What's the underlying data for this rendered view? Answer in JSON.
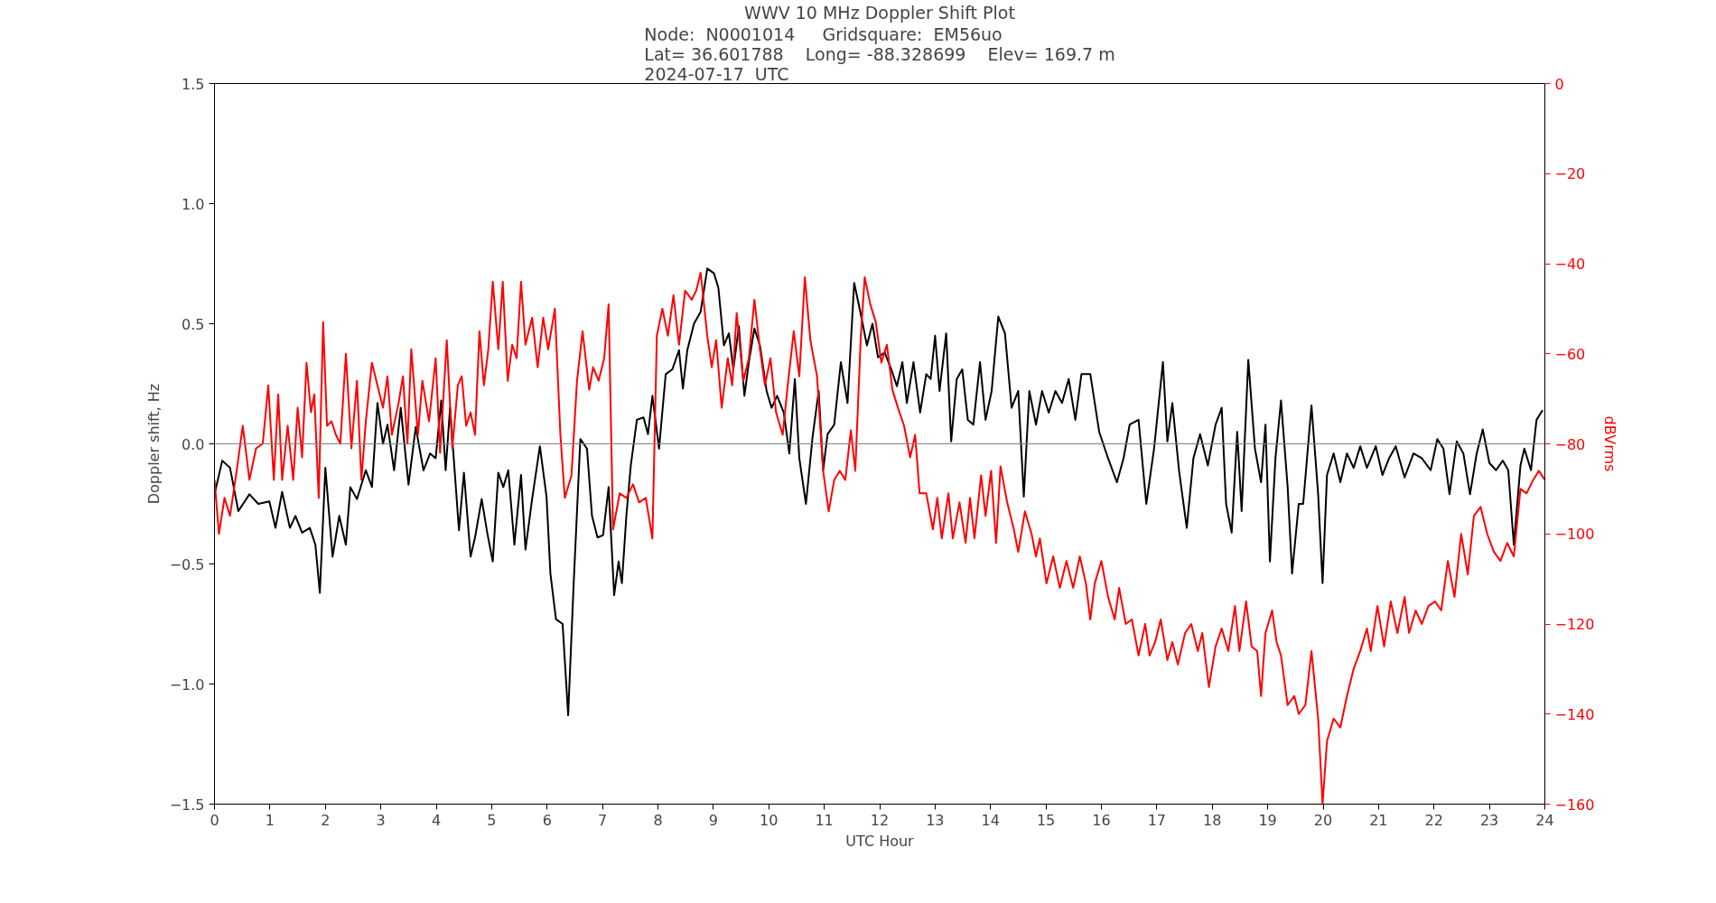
{
  "chart_data": {
    "type": "line",
    "title": "WWV 10 MHz Doppler Shift Plot",
    "subtitle": "Node:  N0001014     Gridsquare:  EM56uo\nLat= 36.601788    Long= -88.328699    Elev= 169.7 m\n2024-07-17  UTC",
    "xlabel": "UTC Hour",
    "ylabel": "Doppler shift, Hz",
    "y2label": "dBVrms",
    "xlim": [
      0,
      24
    ],
    "xticks": [
      0,
      1,
      2,
      3,
      4,
      5,
      6,
      7,
      8,
      9,
      10,
      11,
      12,
      13,
      14,
      15,
      16,
      17,
      18,
      19,
      20,
      21,
      22,
      23,
      24
    ],
    "ylim": [
      -1.5,
      1.5
    ],
    "yticks": [
      {
        "value": -1.5,
        "label": "−1.5"
      },
      {
        "value": -1.0,
        "label": "−1.0"
      },
      {
        "value": -0.5,
        "label": "−0.5"
      },
      {
        "value": 0,
        "label": "0.0"
      },
      {
        "value": 0.5,
        "label": "0.5"
      },
      {
        "value": 1.0,
        "label": "1.0"
      },
      {
        "value": 1.5,
        "label": "1.5"
      }
    ],
    "y2lim": [
      -160,
      0
    ],
    "y2ticks": [
      {
        "value": -160,
        "label": "−160"
      },
      {
        "value": -140,
        "label": "−140"
      },
      {
        "value": -120,
        "label": "−120"
      },
      {
        "value": -100,
        "label": "−100"
      },
      {
        "value": -80,
        "label": "−80"
      },
      {
        "value": -60,
        "label": "−60"
      },
      {
        "value": -40,
        "label": "−40"
      },
      {
        "value": -20,
        "label": "−20"
      },
      {
        "value": 0,
        "label": "0"
      }
    ],
    "grid": false,
    "ref_lines": [
      {
        "axis": "y",
        "value": 0,
        "label": null,
        "color": "#808080"
      }
    ],
    "series": [
      {
        "color": "#000000",
        "x": [
          0,
          0.14,
          0.28,
          0.43,
          0.63,
          0.79,
          0.99,
          1.1,
          1.22,
          1.36,
          1.46,
          1.58,
          1.72,
          1.82,
          1.9,
          2.0,
          2.13,
          2.25,
          2.37,
          2.45,
          2.57,
          2.73,
          2.84,
          2.94,
          3.04,
          3.12,
          3.24,
          3.36,
          3.5,
          3.63,
          3.77,
          3.89,
          3.99,
          4.09,
          4.17,
          4.25,
          4.41,
          4.5,
          4.62,
          4.7,
          4.82,
          4.92,
          5.02,
          5.12,
          5.21,
          5.3,
          5.41,
          5.53,
          5.61,
          5.73,
          5.87,
          5.99,
          6.06,
          6.16,
          6.28,
          6.38,
          6.48,
          6.6,
          6.72,
          6.81,
          6.91,
          7.01,
          7.11,
          7.21,
          7.29,
          7.35,
          7.43,
          7.51,
          7.62,
          7.74,
          7.82,
          7.9,
          8.02,
          8.14,
          8.26,
          8.38,
          8.45,
          8.53,
          8.65,
          8.77,
          8.89,
          9.01,
          9.09,
          9.19,
          9.28,
          9.36,
          9.46,
          9.56,
          9.64,
          9.74,
          9.84,
          9.96,
          10.05,
          10.15,
          10.27,
          10.37,
          10.47,
          10.55,
          10.67,
          10.79,
          10.9,
          10.98,
          11.06,
          11.18,
          11.3,
          11.42,
          11.54,
          11.65,
          11.77,
          11.87,
          11.97,
          12.09,
          12.21,
          12.31,
          12.41,
          12.49,
          12.61,
          12.73,
          12.84,
          12.92,
          13.0,
          13.08,
          13.2,
          13.29,
          13.39,
          13.49,
          13.59,
          13.69,
          13.81,
          13.91,
          14.02,
          14.14,
          14.26,
          14.38,
          14.5,
          14.6,
          14.7,
          14.82,
          14.93,
          15.05,
          15.17,
          15.29,
          15.41,
          15.53,
          15.64,
          15.8,
          15.96,
          16.12,
          16.28,
          16.4,
          16.51,
          16.67,
          16.81,
          16.95,
          17.11,
          17.19,
          17.28,
          17.4,
          17.54,
          17.66,
          17.78,
          17.92,
          18.06,
          18.17,
          18.25,
          18.35,
          18.45,
          18.53,
          18.65,
          18.77,
          18.88,
          18.96,
          19.04,
          19.14,
          19.24,
          19.36,
          19.44,
          19.56,
          19.64,
          19.79,
          19.91,
          19.99,
          20.07,
          20.19,
          20.31,
          20.43,
          20.55,
          20.67,
          20.79,
          20.95,
          21.07,
          21.19,
          21.31,
          21.47,
          21.63,
          21.78,
          21.94,
          22.06,
          22.17,
          22.28,
          22.41,
          22.53,
          22.65,
          22.77,
          22.88,
          23.0,
          23.12,
          23.24,
          23.34,
          23.44,
          23.56,
          23.63,
          23.75,
          23.85,
          23.96
        ],
        "values": [
          -0.21,
          -0.07,
          -0.1,
          -0.28,
          -0.21,
          -0.25,
          -0.24,
          -0.35,
          -0.2,
          -0.35,
          -0.3,
          -0.37,
          -0.35,
          -0.42,
          -0.62,
          -0.1,
          -0.47,
          -0.3,
          -0.42,
          -0.18,
          -0.23,
          -0.11,
          -0.18,
          0.17,
          0.0,
          0.08,
          -0.11,
          0.15,
          -0.17,
          0.07,
          -0.11,
          -0.04,
          -0.06,
          0.18,
          -0.11,
          0.15,
          -0.36,
          -0.12,
          -0.47,
          -0.39,
          -0.23,
          -0.37,
          -0.49,
          -0.12,
          -0.18,
          -0.11,
          -0.42,
          -0.13,
          -0.44,
          -0.23,
          -0.01,
          -0.22,
          -0.54,
          -0.73,
          -0.75,
          -1.13,
          -0.58,
          0.02,
          -0.02,
          -0.3,
          -0.39,
          -0.38,
          -0.18,
          -0.63,
          -0.49,
          -0.58,
          -0.3,
          -0.09,
          0.1,
          0.11,
          0.04,
          0.2,
          -0.02,
          0.29,
          0.31,
          0.39,
          0.23,
          0.39,
          0.5,
          0.55,
          0.73,
          0.71,
          0.65,
          0.41,
          0.46,
          0.31,
          0.49,
          0.2,
          0.34,
          0.48,
          0.41,
          0.22,
          0.15,
          0.2,
          0.13,
          -0.04,
          0.27,
          -0.06,
          -0.25,
          0.03,
          0.22,
          -0.11,
          0.04,
          0.08,
          0.34,
          0.17,
          0.67,
          0.55,
          0.41,
          0.5,
          0.36,
          0.38,
          0.31,
          0.24,
          0.34,
          0.17,
          0.34,
          0.13,
          0.29,
          0.27,
          0.45,
          0.22,
          0.46,
          0.01,
          0.27,
          0.31,
          0.1,
          0.08,
          0.34,
          0.1,
          0.22,
          0.53,
          0.46,
          0.15,
          0.22,
          -0.22,
          0.22,
          0.08,
          0.22,
          0.13,
          0.22,
          0.17,
          0.27,
          0.1,
          0.29,
          0.29,
          0.05,
          -0.06,
          -0.16,
          -0.06,
          0.08,
          0.1,
          -0.25,
          -0.02,
          0.34,
          0.01,
          0.17,
          -0.11,
          -0.35,
          -0.06,
          0.04,
          -0.09,
          0.08,
          0.15,
          -0.25,
          -0.37,
          0.05,
          -0.28,
          0.35,
          -0.02,
          -0.16,
          0.08,
          -0.49,
          -0.06,
          0.18,
          -0.18,
          -0.54,
          -0.25,
          -0.25,
          0.16,
          -0.21,
          -0.58,
          -0.13,
          -0.04,
          -0.16,
          -0.04,
          -0.1,
          -0.01,
          -0.1,
          -0.01,
          -0.13,
          -0.06,
          -0.01,
          -0.14,
          -0.04,
          -0.06,
          -0.11,
          0.02,
          -0.02,
          -0.21,
          0.01,
          -0.04,
          -0.21,
          -0.04,
          0.06,
          -0.08,
          -0.11,
          -0.07,
          -0.11,
          -0.42,
          -0.09,
          -0.02,
          -0.11,
          0.1,
          0.14
        ]
      },
      {
        "color": "#ff0000",
        "axis": "y2",
        "x": [
          0,
          0.08,
          0.18,
          0.28,
          0.4,
          0.51,
          0.63,
          0.75,
          0.87,
          0.97,
          1.07,
          1.15,
          1.22,
          1.32,
          1.42,
          1.5,
          1.58,
          1.66,
          1.74,
          1.8,
          1.88,
          1.96,
          2.03,
          2.11,
          2.19,
          2.27,
          2.37,
          2.47,
          2.57,
          2.65,
          2.73,
          2.84,
          2.96,
          3.04,
          3.12,
          3.2,
          3.32,
          3.4,
          3.48,
          3.55,
          3.67,
          3.75,
          3.87,
          3.99,
          4.07,
          4.19,
          4.29,
          4.39,
          4.46,
          4.54,
          4.62,
          4.7,
          4.78,
          4.86,
          4.94,
          5.02,
          5.12,
          5.2,
          5.29,
          5.37,
          5.45,
          5.53,
          5.61,
          5.73,
          5.83,
          5.93,
          6.02,
          6.14,
          6.24,
          6.32,
          6.44,
          6.54,
          6.64,
          6.76,
          6.83,
          6.93,
          7.03,
          7.11,
          7.19,
          7.31,
          7.43,
          7.55,
          7.66,
          7.78,
          7.9,
          7.98,
          8.08,
          8.18,
          8.28,
          8.38,
          8.49,
          8.61,
          8.69,
          8.77,
          8.89,
          8.97,
          9.05,
          9.15,
          9.26,
          9.34,
          9.42,
          9.54,
          9.64,
          9.74,
          9.84,
          9.93,
          10.03,
          10.13,
          10.25,
          10.35,
          10.45,
          10.55,
          10.65,
          10.75,
          10.87,
          10.98,
          11.08,
          11.18,
          11.28,
          11.38,
          11.48,
          11.56,
          11.66,
          11.73,
          11.83,
          11.93,
          12.03,
          12.13,
          12.23,
          12.33,
          12.44,
          12.55,
          12.64,
          12.72,
          12.84,
          12.96,
          13.04,
          13.12,
          13.24,
          13.32,
          13.44,
          13.55,
          13.63,
          13.71,
          13.83,
          13.91,
          14.01,
          14.1,
          14.18,
          14.3,
          14.42,
          14.5,
          14.62,
          14.74,
          14.82,
          14.89,
          15.01,
          15.13,
          15.25,
          15.37,
          15.49,
          15.61,
          15.72,
          15.8,
          15.88,
          16.0,
          16.12,
          16.24,
          16.32,
          16.44,
          16.55,
          16.67,
          16.79,
          16.87,
          16.97,
          17.07,
          17.19,
          17.28,
          17.38,
          17.51,
          17.62,
          17.74,
          17.82,
          17.94,
          18.06,
          18.17,
          18.29,
          18.41,
          18.49,
          18.61,
          18.71,
          18.81,
          18.88,
          18.96,
          19.08,
          19.16,
          19.24,
          19.36,
          19.48,
          19.56,
          19.68,
          19.79,
          19.91,
          19.99,
          20.07,
          20.19,
          20.31,
          20.43,
          20.55,
          20.67,
          20.79,
          20.86,
          20.98,
          21.1,
          21.22,
          21.34,
          21.47,
          21.55,
          21.67,
          21.78,
          21.9,
          22.02,
          22.13,
          22.25,
          22.37,
          22.49,
          22.61,
          22.72,
          22.84,
          22.96,
          23.08,
          23.2,
          23.32,
          23.44,
          23.56,
          23.67,
          23.79,
          23.89,
          24.0
        ],
        "values": [
          -88,
          -100,
          -92,
          -96,
          -86,
          -76,
          -88,
          -81,
          -80,
          -67,
          -88,
          -69,
          -88,
          -76,
          -88,
          -72,
          -83,
          -62,
          -73,
          -69,
          -92,
          -53,
          -76,
          -75,
          -78,
          -80,
          -60,
          -81,
          -66,
          -88,
          -75,
          -62,
          -68,
          -72,
          -65,
          -78,
          -71,
          -65,
          -80,
          -59,
          -78,
          -66,
          -75,
          -61,
          -82,
          -57,
          -81,
          -67,
          -65,
          -76,
          -73,
          -78,
          -55,
          -67,
          -59,
          -44,
          -59,
          -44,
          -66,
          -58,
          -61,
          -44,
          -58,
          -52,
          -63,
          -52,
          -59,
          -50,
          -78,
          -92,
          -87,
          -66,
          -55,
          -68,
          -63,
          -66,
          -61,
          -49,
          -99,
          -91,
          -92,
          -89,
          -93,
          -92,
          -101,
          -56,
          -50,
          -56,
          -47,
          -58,
          -46,
          -48,
          -46,
          -42,
          -56,
          -63,
          -57,
          -72,
          -61,
          -67,
          -51,
          -66,
          -61,
          -48,
          -59,
          -67,
          -61,
          -73,
          -78,
          -66,
          -55,
          -65,
          -43,
          -57,
          -65,
          -86,
          -95,
          -88,
          -86,
          -88,
          -77,
          -86,
          -56,
          -43,
          -49,
          -53,
          -62,
          -58,
          -68,
          -72,
          -76,
          -83,
          -78,
          -91,
          -91,
          -99,
          -92,
          -101,
          -91,
          -101,
          -93,
          -102,
          -92,
          -101,
          -87,
          -96,
          -86,
          -102,
          -85,
          -93,
          -99,
          -104,
          -95,
          -100,
          -105,
          -101,
          -111,
          -105,
          -112,
          -106,
          -112,
          -105,
          -111,
          -119,
          -111,
          -106,
          -114,
          -119,
          -112,
          -120,
          -119,
          -127,
          -120,
          -127,
          -124,
          -119,
          -128,
          -124,
          -129,
          -122,
          -120,
          -126,
          -122,
          -134,
          -125,
          -121,
          -126,
          -116,
          -126,
          -115,
          -125,
          -126,
          -136,
          -122,
          -117,
          -124,
          -127,
          -138,
          -136,
          -140,
          -138,
          -126,
          -141,
          -160,
          -146,
          -141,
          -143,
          -136,
          -130,
          -126,
          -121,
          -126,
          -116,
          -125,
          -115,
          -122,
          -114,
          -122,
          -117,
          -120,
          -116,
          -115,
          -117,
          -106,
          -114,
          -100,
          -109,
          -96,
          -94,
          -100,
          -104,
          -106,
          -102,
          -105,
          -90,
          -91,
          -88,
          -86,
          -88
        ]
      }
    ]
  }
}
